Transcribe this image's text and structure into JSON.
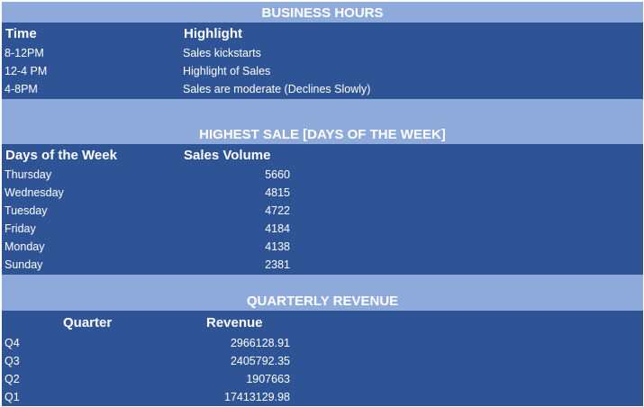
{
  "business_hours": {
    "title": "BUSINESS HOURS",
    "headers": [
      "Time",
      "Highlight"
    ],
    "rows": [
      [
        "8-12PM",
        "Sales kickstarts"
      ],
      [
        "12-4 PM",
        "Highlight of Sales"
      ],
      [
        "4-8PM",
        "Sales are moderate (Declines Slowly)"
      ]
    ]
  },
  "highest_sale": {
    "title": "HIGHEST SALE [DAYS OF THE WEEK]",
    "headers": [
      "Days of the Week",
      "Sales Volume"
    ],
    "rows": [
      [
        "Thursday",
        "5660"
      ],
      [
        "Wednesday",
        "4815"
      ],
      [
        "Tuesday",
        "4722"
      ],
      [
        "Friday",
        "4184"
      ],
      [
        "Monday",
        "4138"
      ],
      [
        "Sunday",
        "2381"
      ]
    ]
  },
  "quarterly_revenue": {
    "title": "QUARTERLY REVENUE",
    "headers": [
      "Quarter",
      "Revenue"
    ],
    "rows": [
      [
        "Q4",
        "2966128.91"
      ],
      [
        "Q3",
        "2405792.35"
      ],
      [
        "Q2",
        "1907663"
      ],
      [
        "Q1",
        "17413129.98"
      ]
    ]
  },
  "colors": {
    "title_band": "#8eaadb",
    "table_body": "#2f5496",
    "text": "#ffffff"
  }
}
